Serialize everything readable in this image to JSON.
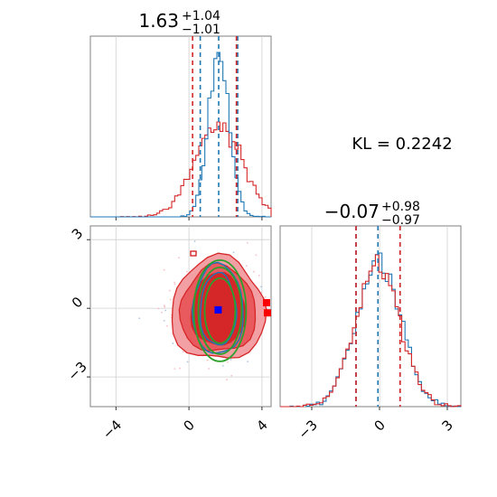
{
  "chart_data": [
    {
      "type": "histogram",
      "panel": "marginal-x",
      "title_value": "1.63",
      "title_plus": "+1.04",
      "title_minus": "−1.01",
      "xlim": [
        -5.4,
        4.5
      ],
      "grid": true,
      "series": [
        {
          "color": "#1f77b4",
          "quantiles": [
            0.62,
            1.63,
            2.67
          ]
        },
        {
          "color": "#d62728",
          "quantiles": [
            0.2,
            2.6
          ]
        }
      ]
    },
    {
      "type": "contour",
      "panel": "joint",
      "xlim": [
        -5.4,
        4.5
      ],
      "ylim": [
        -4.3,
        3.6
      ],
      "xticks": [
        "−4",
        "0",
        "4"
      ],
      "yticks": [
        "3",
        "0",
        "−3"
      ],
      "grid": true,
      "center": {
        "x": 1.6,
        "y": -0.07
      },
      "markers": [
        {
          "color": "#0000ff",
          "shape": "square",
          "x": 1.6,
          "y": -0.07
        },
        {
          "color": "#ff0000",
          "shape": "square",
          "x": 4.3,
          "y": -0.2
        }
      ]
    },
    {
      "type": "histogram",
      "panel": "marginal-y",
      "title_value": "−0.07",
      "title_plus": "+0.98",
      "title_minus": "−0.97",
      "xlim": [
        -4.4,
        3.6
      ],
      "xticks": [
        "−3",
        "0",
        "3"
      ],
      "grid": true,
      "series": [
        {
          "color": "#1f77b4",
          "quantiles": [
            -1.04,
            -0.07,
            0.91
          ]
        },
        {
          "color": "#d62728",
          "quantiles": [
            -1.04,
            0.91
          ]
        }
      ]
    }
  ],
  "kl_label": "KL = 0.2242",
  "colors": {
    "blue": "#1f77b4",
    "red": "#d62728",
    "green": "#2ca02c",
    "grid": "#d0d0d0",
    "axis": "#808080"
  }
}
